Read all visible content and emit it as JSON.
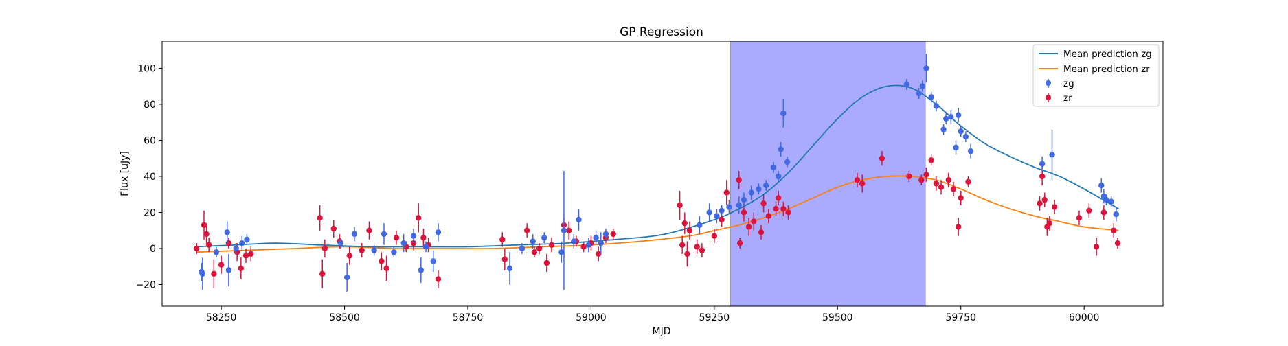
{
  "chart_data": {
    "type": "scatter",
    "title": "GP Regression",
    "xlabel": "MJD",
    "ylabel": "Flux [uJy]",
    "xlim": [
      58130,
      60160
    ],
    "ylim": [
      -32,
      115
    ],
    "xticks": [
      58250,
      58500,
      58750,
      59000,
      59250,
      59500,
      59750,
      60000
    ],
    "yticks": [
      -20,
      0,
      20,
      40,
      60,
      80,
      100
    ],
    "grid": false,
    "legend_position": "top-right",
    "shaded_region": {
      "x0": 59283,
      "x1": 59678,
      "color": "#aaaaff"
    },
    "colors": {
      "zg_points": "#4169e1",
      "zr_points": "#dc143c",
      "zg_mean": "#1f77b4",
      "zr_mean": "#ff7f0e"
    },
    "legend": {
      "mean_zg": "Mean prediction zg",
      "mean_zr": "Mean prediction zr",
      "zg": "zg",
      "zr": "zr"
    },
    "mean_zg": [
      [
        58200,
        1
      ],
      [
        58280,
        2
      ],
      [
        58360,
        3
      ],
      [
        58450,
        2
      ],
      [
        58550,
        1
      ],
      [
        58650,
        1
      ],
      [
        58750,
        1
      ],
      [
        58850,
        2
      ],
      [
        58950,
        3
      ],
      [
        59050,
        5
      ],
      [
        59150,
        8
      ],
      [
        59250,
        16
      ],
      [
        59300,
        22
      ],
      [
        59350,
        30
      ],
      [
        59400,
        42
      ],
      [
        59450,
        57
      ],
      [
        59500,
        72
      ],
      [
        59550,
        84
      ],
      [
        59600,
        90
      ],
      [
        59650,
        89
      ],
      [
        59700,
        80
      ],
      [
        59750,
        68
      ],
      [
        59800,
        58
      ],
      [
        59850,
        51
      ],
      [
        59900,
        45
      ],
      [
        59950,
        40
      ],
      [
        60000,
        33
      ],
      [
        60070,
        22
      ]
    ],
    "mean_zr": [
      [
        58200,
        -2
      ],
      [
        58300,
        -1
      ],
      [
        58400,
        0
      ],
      [
        58500,
        1
      ],
      [
        58600,
        0
      ],
      [
        58700,
        0
      ],
      [
        58800,
        0
      ],
      [
        58900,
        1
      ],
      [
        59000,
        2
      ],
      [
        59100,
        4
      ],
      [
        59200,
        7
      ],
      [
        59250,
        10
      ],
      [
        59300,
        13
      ],
      [
        59350,
        17
      ],
      [
        59400,
        22
      ],
      [
        59450,
        28
      ],
      [
        59500,
        34
      ],
      [
        59550,
        38
      ],
      [
        59600,
        40
      ],
      [
        59650,
        40
      ],
      [
        59700,
        38
      ],
      [
        59750,
        33
      ],
      [
        59800,
        27
      ],
      [
        59850,
        22
      ],
      [
        59900,
        18
      ],
      [
        59950,
        15
      ],
      [
        60000,
        12
      ],
      [
        60070,
        10
      ]
    ],
    "zg_points": [
      [
        58210,
        -13,
        5
      ],
      [
        58212,
        -14,
        9
      ],
      [
        58240,
        -2,
        3
      ],
      [
        58262,
        9,
        6
      ],
      [
        58265,
        -12,
        9
      ],
      [
        58280,
        0,
        3
      ],
      [
        58292,
        3,
        4
      ],
      [
        58302,
        5,
        3
      ],
      [
        58492,
        3,
        3
      ],
      [
        58505,
        -16,
        8
      ],
      [
        58520,
        8,
        4
      ],
      [
        58560,
        -1,
        3
      ],
      [
        58580,
        8,
        6
      ],
      [
        58600,
        -2,
        3
      ],
      [
        58620,
        3,
        5
      ],
      [
        58640,
        7,
        4
      ],
      [
        58655,
        -12,
        7
      ],
      [
        58665,
        1,
        3
      ],
      [
        58680,
        -7,
        6
      ],
      [
        58690,
        9,
        5
      ],
      [
        58835,
        -11,
        9
      ],
      [
        58860,
        0,
        3
      ],
      [
        58882,
        4,
        4
      ],
      [
        58905,
        6,
        3
      ],
      [
        58940,
        -2,
        6
      ],
      [
        58945,
        10,
        33
      ],
      [
        58965,
        4,
        4
      ],
      [
        58975,
        16,
        6
      ],
      [
        58995,
        2,
        4
      ],
      [
        59010,
        6,
        4
      ],
      [
        59020,
        3,
        6
      ],
      [
        59030,
        8,
        3
      ],
      [
        59220,
        13,
        5
      ],
      [
        59240,
        20,
        5
      ],
      [
        59255,
        18,
        4
      ],
      [
        59265,
        21,
        3
      ],
      [
        59280,
        23,
        4
      ],
      [
        59300,
        24,
        5
      ],
      [
        59310,
        27,
        4
      ],
      [
        59325,
        31,
        4
      ],
      [
        59340,
        33,
        3
      ],
      [
        59355,
        35,
        3
      ],
      [
        59370,
        45,
        3
      ],
      [
        59380,
        40,
        3
      ],
      [
        59385,
        55,
        4
      ],
      [
        59390,
        75,
        8
      ],
      [
        59398,
        48,
        3
      ],
      [
        59640,
        91,
        3
      ],
      [
        59665,
        86,
        3
      ],
      [
        59672,
        90,
        3
      ],
      [
        59680,
        100,
        8
      ],
      [
        59690,
        84,
        3
      ],
      [
        59700,
        79,
        3
      ],
      [
        59715,
        66,
        3
      ],
      [
        59720,
        72,
        3
      ],
      [
        59730,
        73,
        4
      ],
      [
        59740,
        56,
        4
      ],
      [
        59745,
        74,
        4
      ],
      [
        59750,
        65,
        3
      ],
      [
        59760,
        62,
        3
      ],
      [
        59770,
        54,
        4
      ],
      [
        59915,
        47,
        4
      ],
      [
        59935,
        52,
        14
      ],
      [
        60035,
        35,
        4
      ],
      [
        60040,
        29,
        4
      ],
      [
        60045,
        27,
        3
      ],
      [
        60055,
        26,
        3
      ],
      [
        60065,
        19,
        4
      ]
    ],
    "zr_points": [
      [
        58200,
        0,
        3
      ],
      [
        58215,
        13,
        8
      ],
      [
        58220,
        8,
        6
      ],
      [
        58225,
        2,
        4
      ],
      [
        58235,
        -14,
        8
      ],
      [
        58250,
        -9,
        5
      ],
      [
        58265,
        3,
        3
      ],
      [
        58282,
        -2,
        5
      ],
      [
        58290,
        -11,
        6
      ],
      [
        58300,
        -4,
        4
      ],
      [
        58310,
        -3,
        4
      ],
      [
        58450,
        17,
        7
      ],
      [
        58455,
        -14,
        8
      ],
      [
        58460,
        0,
        5
      ],
      [
        58478,
        11,
        5
      ],
      [
        58490,
        4,
        4
      ],
      [
        58510,
        -4,
        5
      ],
      [
        58535,
        -1,
        4
      ],
      [
        58550,
        10,
        5
      ],
      [
        58575,
        -7,
        5
      ],
      [
        58585,
        -11,
        7
      ],
      [
        58605,
        6,
        4
      ],
      [
        58625,
        1,
        3
      ],
      [
        58640,
        3,
        4
      ],
      [
        58650,
        17,
        8
      ],
      [
        58660,
        6,
        5
      ],
      [
        58670,
        2,
        4
      ],
      [
        58690,
        -17,
        5
      ],
      [
        58820,
        5,
        4
      ],
      [
        58825,
        -6,
        6
      ],
      [
        58870,
        10,
        4
      ],
      [
        58885,
        -2,
        3
      ],
      [
        58895,
        0,
        3
      ],
      [
        58910,
        -8,
        5
      ],
      [
        58920,
        2,
        4
      ],
      [
        58945,
        13,
        4
      ],
      [
        58955,
        10,
        5
      ],
      [
        58970,
        4,
        3
      ],
      [
        58985,
        1,
        3
      ],
      [
        59000,
        3,
        4
      ],
      [
        59015,
        -3,
        4
      ],
      [
        59030,
        6,
        3
      ],
      [
        59045,
        8,
        3
      ],
      [
        59180,
        24,
        8
      ],
      [
        59185,
        2,
        5
      ],
      [
        59190,
        14,
        6
      ],
      [
        59195,
        -3,
        7
      ],
      [
        59200,
        10,
        5
      ],
      [
        59215,
        1,
        4
      ],
      [
        59225,
        -1,
        4
      ],
      [
        59250,
        7,
        4
      ],
      [
        59265,
        16,
        4
      ],
      [
        59275,
        31,
        7
      ],
      [
        59300,
        38,
        5
      ],
      [
        59302,
        3,
        3
      ],
      [
        59310,
        20,
        5
      ],
      [
        59320,
        12,
        5
      ],
      [
        59330,
        15,
        5
      ],
      [
        59345,
        9,
        4
      ],
      [
        59350,
        25,
        5
      ],
      [
        59360,
        18,
        4
      ],
      [
        59375,
        22,
        4
      ],
      [
        59380,
        28,
        4
      ],
      [
        59390,
        22,
        4
      ],
      [
        59400,
        20,
        4
      ],
      [
        59540,
        38,
        4
      ],
      [
        59550,
        36,
        5
      ],
      [
        59590,
        50,
        4
      ],
      [
        59645,
        40,
        3
      ],
      [
        59670,
        38,
        3
      ],
      [
        59680,
        41,
        4
      ],
      [
        59690,
        49,
        3
      ],
      [
        59700,
        36,
        4
      ],
      [
        59710,
        34,
        4
      ],
      [
        59725,
        38,
        4
      ],
      [
        59735,
        33,
        4
      ],
      [
        59745,
        12,
        5
      ],
      [
        59750,
        28,
        4
      ],
      [
        59765,
        37,
        3
      ],
      [
        59910,
        25,
        4
      ],
      [
        59915,
        40,
        5
      ],
      [
        59920,
        27,
        4
      ],
      [
        59925,
        12,
        5
      ],
      [
        59930,
        14,
        4
      ],
      [
        59940,
        23,
        4
      ],
      [
        59990,
        17,
        4
      ],
      [
        60010,
        21,
        4
      ],
      [
        60025,
        1,
        5
      ],
      [
        60040,
        20,
        4
      ],
      [
        60060,
        10,
        4
      ],
      [
        60068,
        3,
        3
      ]
    ]
  }
}
